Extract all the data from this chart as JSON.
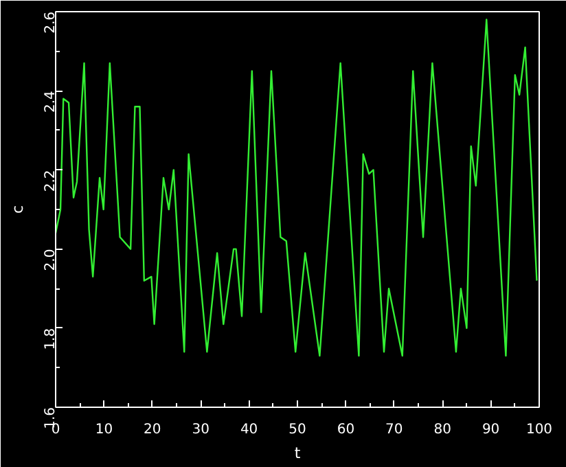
{
  "chart_data": {
    "type": "line",
    "xlabel": "t",
    "ylabel": "c",
    "x": [
      0,
      1,
      1.6,
      2.7,
      3.7,
      4.4,
      5.9,
      6.9,
      7.7,
      9.1,
      9.9,
      11.2,
      13.3,
      15.5,
      16.4,
      17.4,
      18.3,
      19.8,
      20.4,
      22.3,
      23.4,
      24.4,
      26.6,
      27.5,
      31.3,
      33.4,
      34.7,
      36.8,
      37.3,
      38.5,
      40.6,
      42.5,
      44.6,
      46.5,
      47.7,
      49.6,
      51.6,
      54.6,
      58.9,
      62.7,
      63.6,
      64.8,
      65.7,
      67.9,
      68.9,
      71.7,
      73.9,
      76.0,
      77.9,
      82.8,
      83.8,
      85.0,
      85.9,
      86.9,
      89.1,
      93.1,
      95.0,
      95.9,
      97.1,
      99.5
    ],
    "series": [
      {
        "color": "#33ee33",
        "values": [
          2.04,
          2.1,
          2.38,
          2.37,
          2.13,
          2.17,
          2.47,
          2.05,
          1.93,
          2.18,
          2.1,
          2.47,
          2.03,
          2.0,
          2.36,
          2.36,
          1.92,
          1.93,
          1.81,
          2.18,
          2.1,
          2.2,
          1.74,
          2.24,
          1.74,
          1.99,
          1.81,
          2.0,
          2.0,
          1.83,
          2.45,
          1.84,
          2.45,
          2.03,
          2.02,
          1.74,
          1.99,
          1.73,
          2.47,
          1.73,
          2.24,
          2.19,
          2.2,
          1.74,
          1.9,
          1.73,
          2.45,
          2.03,
          2.47,
          1.74,
          1.9,
          1.8,
          2.26,
          2.16,
          2.58,
          1.73,
          2.44,
          2.39,
          2.51,
          1.92
        ]
      }
    ],
    "xlim": [
      0,
      100
    ],
    "ylim": [
      1.6,
      2.6
    ],
    "xticks": [
      0,
      10,
      20,
      30,
      40,
      50,
      60,
      70,
      80,
      90,
      100
    ],
    "yticks": [
      {
        "value": 1.6,
        "label": "1.6"
      },
      {
        "value": 1.8,
        "label": "1.8"
      },
      {
        "value": 2.0,
        "label": "2.0"
      },
      {
        "value": 2.2,
        "label": "2.2"
      },
      {
        "value": 2.4,
        "label": "2.4"
      },
      {
        "value": 2.6,
        "label": "2.6"
      }
    ],
    "grid": false,
    "marker": "none",
    "line_style": "solid"
  }
}
